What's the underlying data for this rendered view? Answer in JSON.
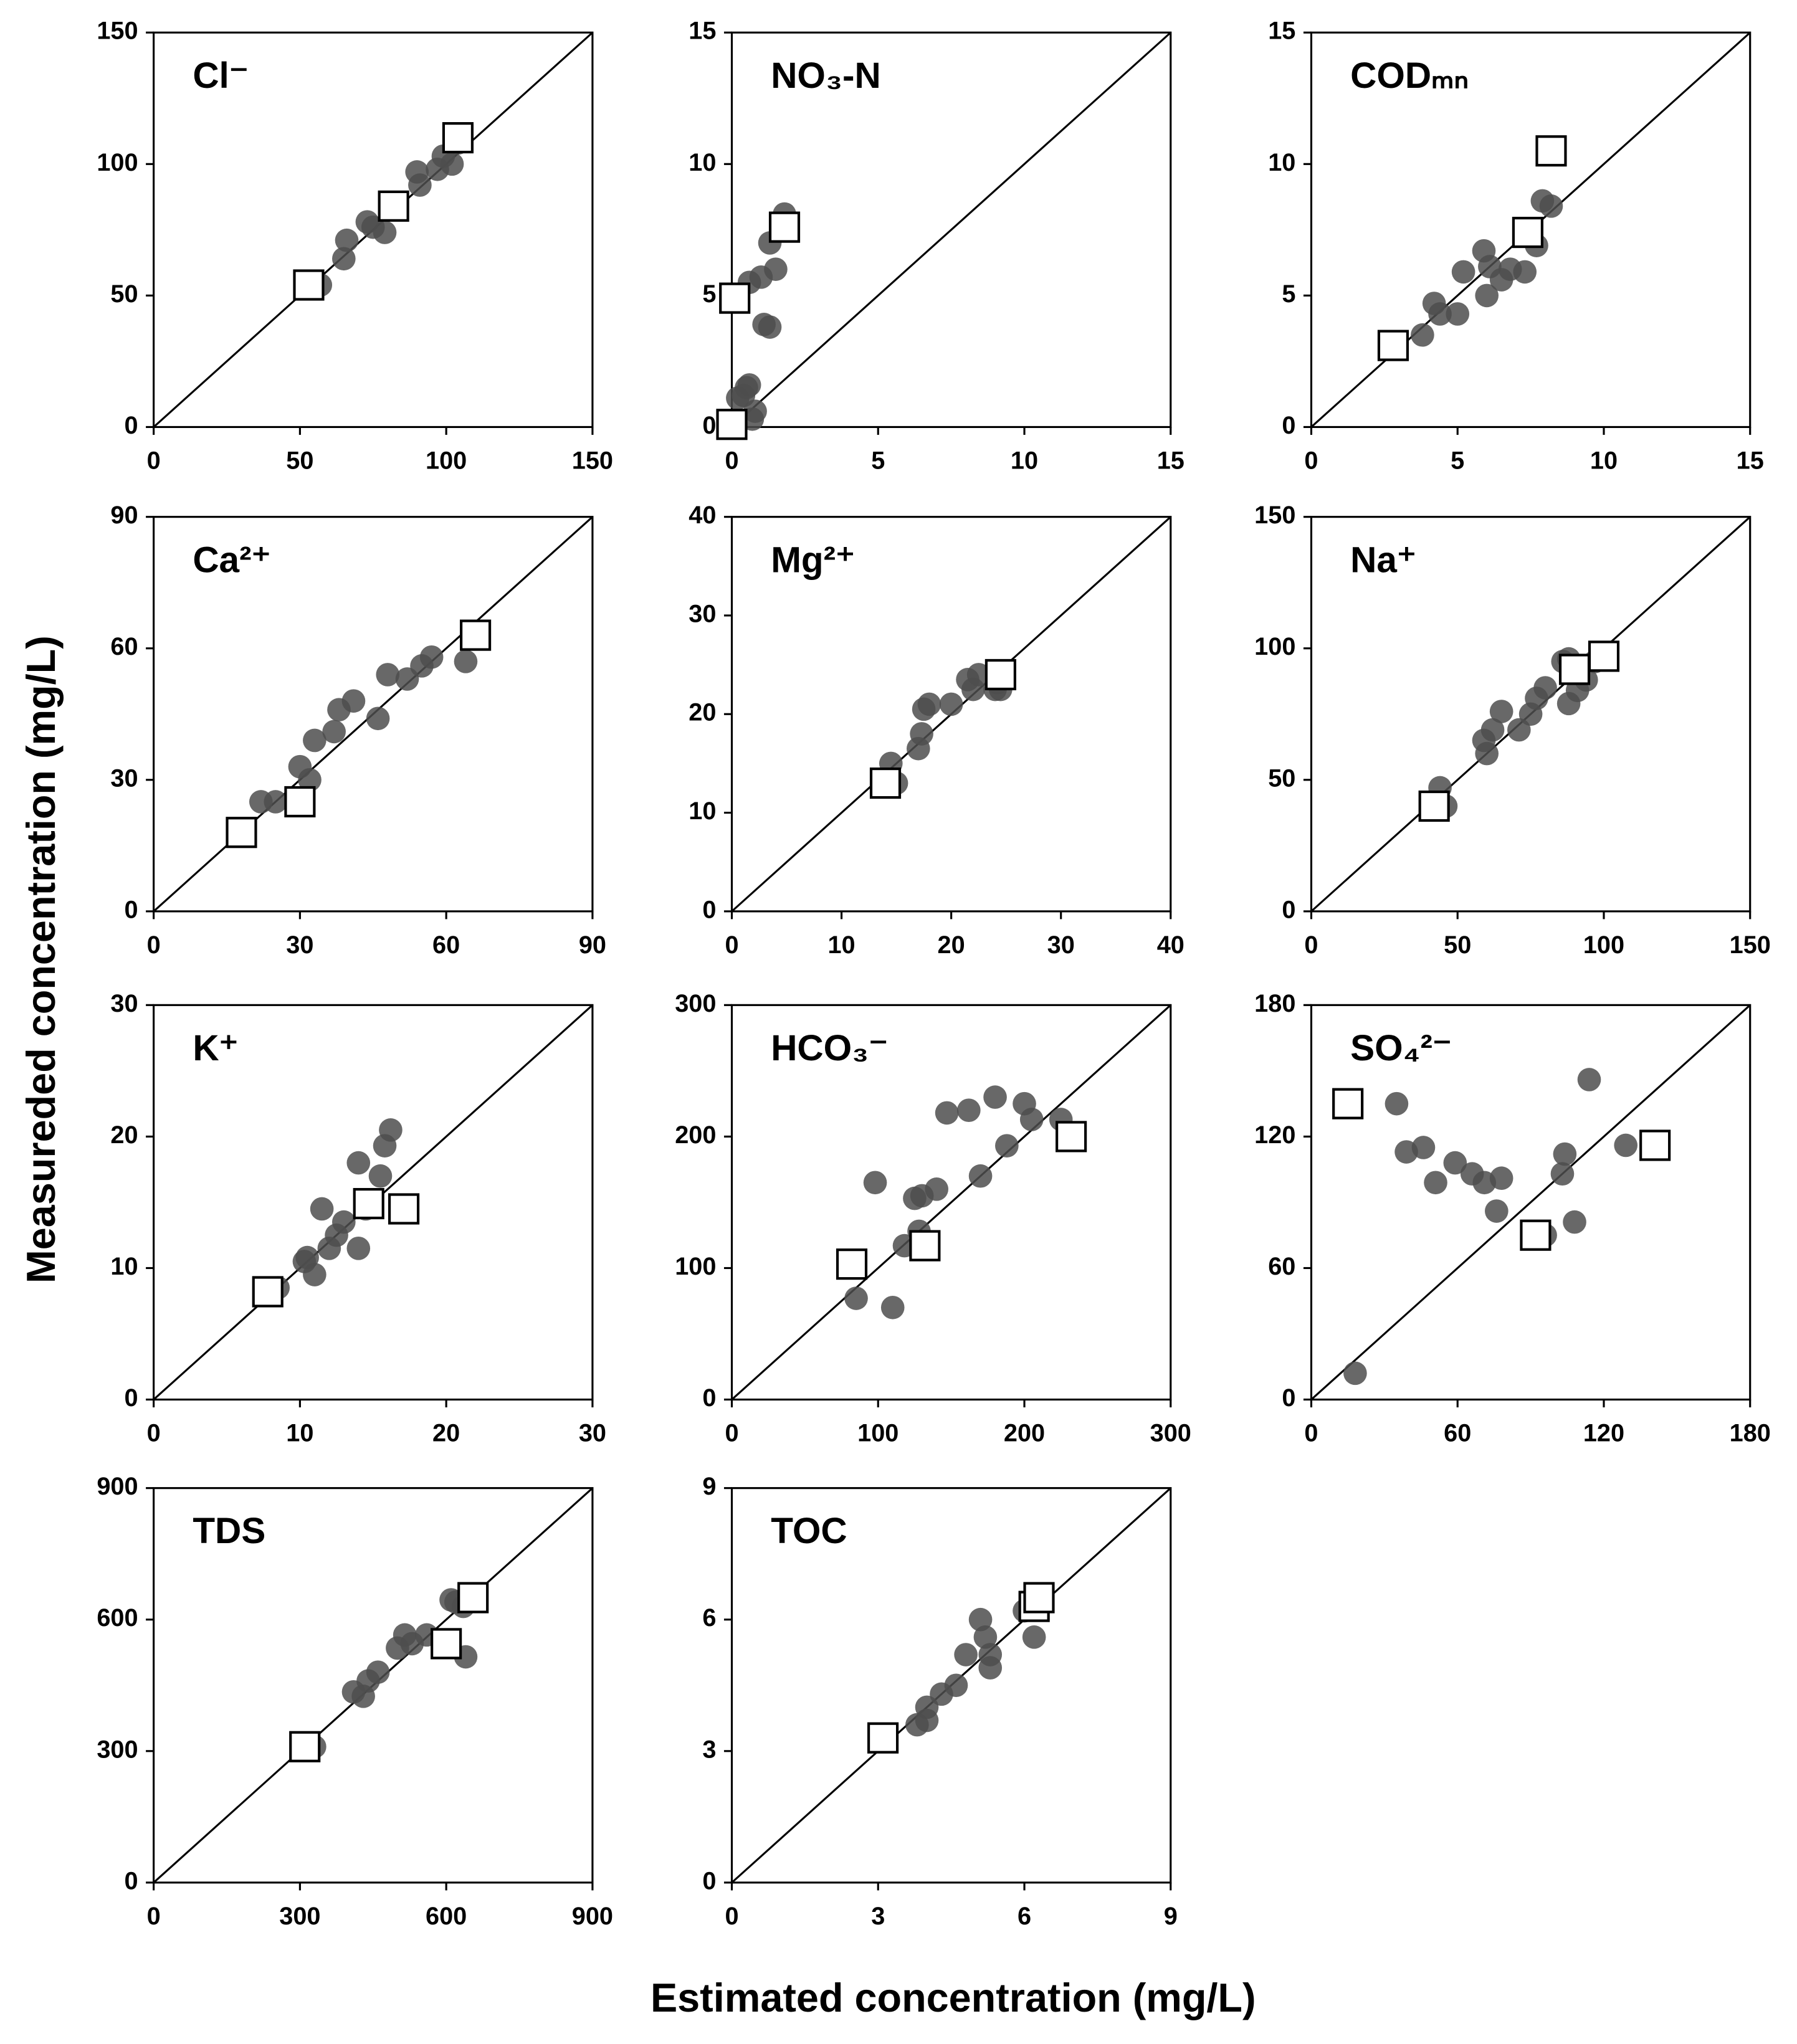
{
  "xlabel": "Estimated concentration (mg/L)",
  "ylabel": "Measureded concentration (mg/L)",
  "chart_data": [
    {
      "type": "scatter",
      "title": "Cl⁻",
      "xlim": [
        0,
        150
      ],
      "ylim": [
        0,
        150
      ],
      "xticks": [
        0,
        50,
        100,
        150
      ],
      "yticks": [
        0,
        50,
        100,
        150
      ],
      "series": [
        {
          "color": "#4d4d4d",
          "marker": "circle",
          "x": [
            57,
            65,
            66,
            73,
            75,
            79,
            90,
            91,
            97,
            99,
            102,
            104
          ],
          "values": [
            54,
            64,
            71,
            78,
            76,
            74,
            97,
            92,
            98,
            103,
            100,
            108
          ]
        },
        {
          "color": "#ffffff",
          "marker": "square",
          "x": [
            53,
            82,
            104
          ],
          "values": [
            54,
            84,
            110
          ]
        }
      ]
    },
    {
      "type": "scatter",
      "title": "NO₃-N",
      "xlim": [
        0,
        15
      ],
      "ylim": [
        0,
        15
      ],
      "xticks": [
        0,
        5,
        10,
        15
      ],
      "yticks": [
        0,
        5,
        10,
        15
      ],
      "series": [
        {
          "color": "#4d4d4d",
          "marker": "circle",
          "x": [
            0.2,
            0.4,
            0.6,
            0.7,
            0.8,
            0.6,
            1.0,
            1.1,
            1.3,
            1.3,
            1.5,
            1.8,
            0.5
          ],
          "values": [
            1.1,
            1.2,
            1.6,
            0.3,
            0.6,
            5.5,
            5.7,
            3.9,
            3.8,
            7.0,
            6.0,
            8.1,
            1.5
          ]
        },
        {
          "color": "#ffffff",
          "marker": "square",
          "x": [
            0.1,
            0.0,
            1.8
          ],
          "values": [
            4.9,
            0.1,
            7.6
          ]
        }
      ]
    },
    {
      "type": "scatter",
      "title": "CODₘₙ",
      "xlim": [
        0,
        15
      ],
      "ylim": [
        0,
        15
      ],
      "xticks": [
        0,
        5,
        10,
        15
      ],
      "yticks": [
        0,
        5,
        10,
        15
      ],
      "series": [
        {
          "color": "#4d4d4d",
          "marker": "circle",
          "x": [
            3.8,
            4.2,
            4.4,
            5.0,
            5.2,
            5.9,
            6.0,
            6.1,
            6.5,
            6.8,
            7.3,
            7.7,
            7.9,
            8.2,
            7.5
          ],
          "values": [
            3.5,
            4.7,
            4.3,
            4.3,
            5.9,
            6.7,
            5.0,
            6.1,
            5.6,
            6.0,
            5.9,
            6.9,
            8.6,
            8.4,
            7.3
          ]
        },
        {
          "color": "#ffffff",
          "marker": "square",
          "x": [
            2.8,
            7.4,
            8.2
          ],
          "values": [
            3.1,
            7.4,
            10.5
          ]
        }
      ]
    },
    {
      "type": "scatter",
      "title": "Ca²⁺",
      "xlim": [
        0,
        90
      ],
      "ylim": [
        0,
        90
      ],
      "xticks": [
        0,
        30,
        60,
        90
      ],
      "yticks": [
        0,
        30,
        60,
        90
      ],
      "series": [
        {
          "color": "#4d4d4d",
          "marker": "circle",
          "x": [
            22,
            25,
            30,
            32,
            33,
            37,
            38,
            41,
            46,
            48,
            52,
            55,
            57,
            64
          ],
          "values": [
            25,
            25,
            33,
            30,
            39,
            41,
            46,
            48,
            44,
            54,
            53,
            56,
            58,
            57
          ]
        },
        {
          "color": "#ffffff",
          "marker": "square",
          "x": [
            18,
            30,
            66
          ],
          "values": [
            18,
            25,
            63
          ]
        }
      ]
    },
    {
      "type": "scatter",
      "title": "Mg²⁺",
      "xlim": [
        0,
        40
      ],
      "ylim": [
        0,
        40
      ],
      "xticks": [
        0,
        10,
        20,
        30,
        40
      ],
      "yticks": [
        0,
        10,
        20,
        30,
        40
      ],
      "series": [
        {
          "color": "#4d4d4d",
          "marker": "circle",
          "x": [
            14.5,
            15,
            17,
            17.3,
            17.5,
            18,
            20,
            21.5,
            22,
            22.5,
            24,
            24.5,
            24.2
          ],
          "values": [
            15,
            13,
            16.5,
            18,
            20.5,
            21,
            21,
            23.5,
            22.5,
            24,
            22.5,
            22.5,
            23.2
          ]
        },
        {
          "color": "#ffffff",
          "marker": "square",
          "x": [
            14,
            24.5
          ],
          "values": [
            13,
            24
          ]
        }
      ]
    },
    {
      "type": "scatter",
      "title": "Na⁺",
      "xlim": [
        0,
        150
      ],
      "ylim": [
        0,
        150
      ],
      "xticks": [
        0,
        50,
        100,
        150
      ],
      "yticks": [
        0,
        50,
        100,
        150
      ],
      "series": [
        {
          "color": "#4d4d4d",
          "marker": "circle",
          "x": [
            44,
            46,
            59,
            60,
            62,
            65,
            71,
            75,
            77,
            80,
            86,
            88,
            88,
            91,
            94,
            97
          ],
          "values": [
            47,
            40,
            65,
            60,
            69,
            76,
            69,
            75,
            81,
            85,
            95,
            96,
            79,
            84,
            88,
            95
          ]
        },
        {
          "color": "#ffffff",
          "marker": "square",
          "x": [
            42,
            90,
            100
          ],
          "values": [
            40,
            92,
            97
          ]
        }
      ]
    },
    {
      "type": "scatter",
      "title": "K⁺",
      "xlim": [
        0,
        30
      ],
      "ylim": [
        0,
        30
      ],
      "xticks": [
        0,
        10,
        20,
        30
      ],
      "yticks": [
        0,
        10,
        20,
        30
      ],
      "series": [
        {
          "color": "#4d4d4d",
          "marker": "circle",
          "x": [
            8.5,
            10.3,
            10.5,
            11,
            11.5,
            12,
            12.5,
            13,
            14,
            14,
            15.5,
            15.8,
            16.2,
            14.5
          ],
          "values": [
            8.5,
            10.5,
            10.8,
            9.5,
            14.5,
            11.5,
            12.5,
            13.5,
            11.5,
            18,
            17,
            19.3,
            20.5,
            14.5
          ]
        },
        {
          "color": "#ffffff",
          "marker": "square",
          "x": [
            7.8,
            14.7,
            17.1
          ],
          "values": [
            8.2,
            14.9,
            14.5
          ]
        }
      ]
    },
    {
      "type": "scatter",
      "title": "HCO₃⁻",
      "xlim": [
        0,
        300
      ],
      "ylim": [
        0,
        300
      ],
      "xticks": [
        0,
        100,
        200,
        300
      ],
      "yticks": [
        0,
        100,
        200,
        300
      ],
      "series": [
        {
          "color": "#4d4d4d",
          "marker": "circle",
          "x": [
            85,
            98,
            110,
            118,
            125,
            128,
            130,
            140,
            147,
            162,
            170,
            180,
            188,
            200,
            205,
            225
          ],
          "values": [
            77,
            165,
            70,
            117,
            153,
            128,
            155,
            160,
            218,
            220,
            170,
            230,
            193,
            225,
            213,
            213
          ]
        },
        {
          "color": "#ffffff",
          "marker": "square",
          "x": [
            82,
            132,
            232
          ],
          "values": [
            103,
            117,
            200
          ]
        }
      ]
    },
    {
      "type": "scatter",
      "title": "SO₄²⁻",
      "xlim": [
        0,
        180
      ],
      "ylim": [
        0,
        180
      ],
      "xticks": [
        0,
        60,
        120,
        180
      ],
      "yticks": [
        0,
        60,
        120,
        180
      ],
      "series": [
        {
          "color": "#4d4d4d",
          "marker": "circle",
          "x": [
            18,
            35,
            39,
            46,
            51,
            59,
            66,
            71,
            76,
            78,
            96,
            103,
            104,
            108,
            114,
            129
          ],
          "values": [
            12,
            135,
            113,
            115,
            99,
            108,
            103,
            99,
            86,
            101,
            75,
            103,
            112,
            81,
            146,
            116
          ]
        },
        {
          "color": "#ffffff",
          "marker": "square",
          "x": [
            15,
            92,
            141
          ],
          "values": [
            135,
            75,
            116
          ]
        }
      ]
    },
    {
      "type": "scatter",
      "title": "TDS",
      "xlim": [
        0,
        900
      ],
      "ylim": [
        0,
        900
      ],
      "xticks": [
        0,
        300,
        600,
        900
      ],
      "yticks": [
        0,
        300,
        600,
        900
      ],
      "series": [
        {
          "color": "#4d4d4d",
          "marker": "circle",
          "x": [
            330,
            410,
            430,
            440,
            460,
            500,
            515,
            530,
            560,
            610,
            620,
            635,
            640
          ],
          "values": [
            310,
            435,
            425,
            460,
            480,
            535,
            565,
            545,
            565,
            645,
            640,
            630,
            515
          ]
        },
        {
          "color": "#ffffff",
          "marker": "square",
          "x": [
            310,
            600,
            655
          ],
          "values": [
            310,
            545,
            650
          ]
        }
      ]
    },
    {
      "type": "scatter",
      "title": "TOC",
      "xlim": [
        0,
        9
      ],
      "ylim": [
        0,
        9
      ],
      "xticks": [
        0,
        3,
        6,
        9
      ],
      "yticks": [
        0,
        3,
        6,
        9
      ],
      "series": [
        {
          "color": "#4d4d4d",
          "marker": "circle",
          "x": [
            3.8,
            4.0,
            4.0,
            4.3,
            4.6,
            4.8,
            5.1,
            5.2,
            5.3,
            5.3,
            6.0,
            6.2
          ],
          "values": [
            3.6,
            3.7,
            4.0,
            4.3,
            4.5,
            5.2,
            6.0,
            5.6,
            5.2,
            4.9,
            6.2,
            5.6
          ]
        },
        {
          "color": "#ffffff",
          "marker": "square",
          "x": [
            3.1,
            6.2,
            6.3
          ],
          "values": [
            3.3,
            6.3,
            6.5
          ]
        }
      ]
    }
  ]
}
